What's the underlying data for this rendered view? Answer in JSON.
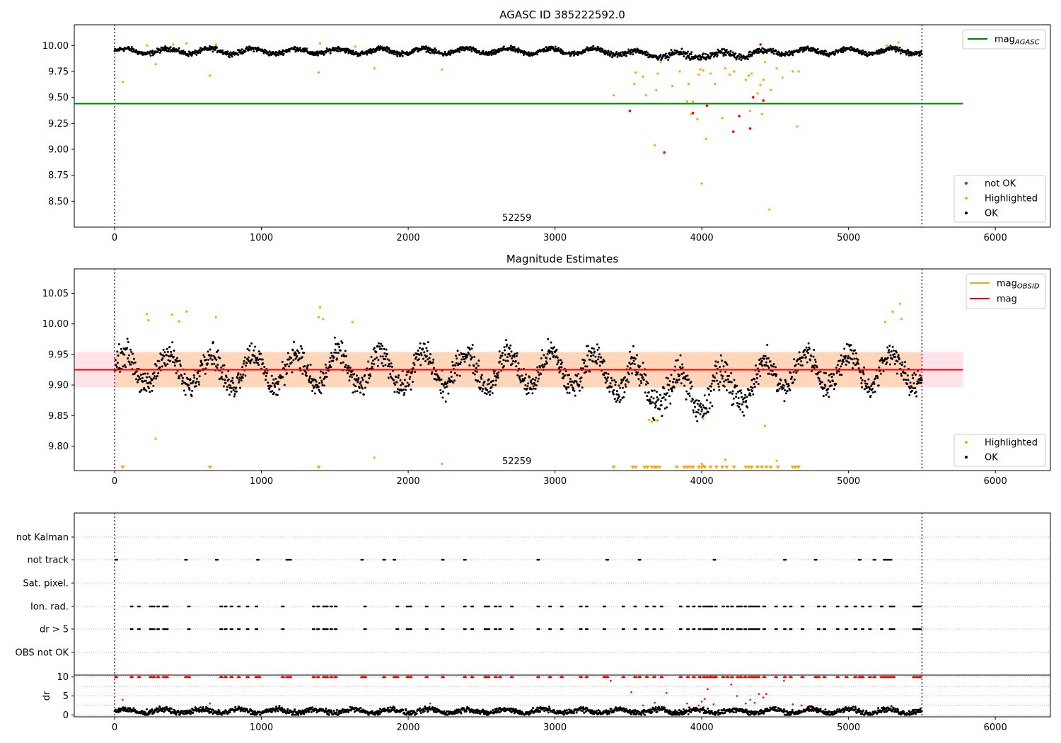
{
  "chart_data": [
    {
      "type": "scatter",
      "title": "AGASC ID 385222592.0",
      "xlim": [
        -275,
        6375
      ],
      "ylim": [
        8.25,
        10.2
      ],
      "x_ticks": [
        0,
        1000,
        2000,
        3000,
        4000,
        5000,
        6000
      ],
      "x_tick_labels": [
        "0",
        "1000",
        "2000",
        "3000",
        "4000",
        "5000",
        "6000"
      ],
      "y_ticks": [
        8.5,
        8.75,
        9.0,
        9.25,
        9.5,
        9.75,
        10.0
      ],
      "y_tick_labels": [
        "8.50",
        "8.75",
        "9.00",
        "9.25",
        "9.50",
        "9.75",
        "10.00"
      ],
      "obsid_label": "52259",
      "obsid_label_x": 2740,
      "obs_bounds": [
        0,
        5500
      ],
      "mag_agasc": 9.44,
      "mag_agasc_xrange": [
        -275,
        5780
      ],
      "ok_band": {
        "center": 9.945,
        "amplitude": 0.025,
        "noise": 0.02,
        "period": 290,
        "dip": {
          "x": [
            3300,
            4600
          ],
          "depth": 0.04
        }
      },
      "legend_top": [
        {
          "name": "mag$_{AGASC}$",
          "label": "mag",
          "sub": "AGASC",
          "color": "#008000"
        }
      ],
      "legend_bottom": [
        {
          "name": "not OK",
          "color": "#ff0000"
        },
        {
          "name": "Highlighted",
          "color": "#ffa500"
        },
        {
          "name": "OK",
          "color": "#000000"
        }
      ],
      "not_ok_points": [
        {
          "x": 3510,
          "y": 9.37
        },
        {
          "x": 3745,
          "y": 8.97
        },
        {
          "x": 3940,
          "y": 9.35
        },
        {
          "x": 4035,
          "y": 9.42
        },
        {
          "x": 4215,
          "y": 9.17
        },
        {
          "x": 4255,
          "y": 9.32
        },
        {
          "x": 4330,
          "y": 9.2
        },
        {
          "x": 4350,
          "y": 9.5
        },
        {
          "x": 4400,
          "y": 10.01
        },
        {
          "x": 4420,
          "y": 9.47
        }
      ],
      "highlighted_points": [
        {
          "x": 55,
          "y": 9.65
        },
        {
          "x": 280,
          "y": 9.82
        },
        {
          "x": 220,
          "y": 10.0
        },
        {
          "x": 400,
          "y": 10.01
        },
        {
          "x": 490,
          "y": 10.02
        },
        {
          "x": 650,
          "y": 9.71
        },
        {
          "x": 690,
          "y": 10.01
        },
        {
          "x": 1390,
          "y": 9.74
        },
        {
          "x": 1400,
          "y": 10.02
        },
        {
          "x": 1640,
          "y": 9.99
        },
        {
          "x": 1770,
          "y": 9.78
        },
        {
          "x": 2230,
          "y": 9.77
        },
        {
          "x": 3400,
          "y": 9.52
        },
        {
          "x": 3540,
          "y": 9.63
        },
        {
          "x": 3550,
          "y": 9.74
        },
        {
          "x": 3600,
          "y": 9.7
        },
        {
          "x": 3620,
          "y": 9.52
        },
        {
          "x": 3680,
          "y": 9.04
        },
        {
          "x": 3690,
          "y": 9.57
        },
        {
          "x": 3700,
          "y": 9.73
        },
        {
          "x": 3720,
          "y": 9.84
        },
        {
          "x": 3800,
          "y": 9.61
        },
        {
          "x": 3850,
          "y": 9.75
        },
        {
          "x": 3900,
          "y": 9.46
        },
        {
          "x": 3910,
          "y": 9.63
        },
        {
          "x": 3930,
          "y": 9.34
        },
        {
          "x": 3940,
          "y": 9.46
        },
        {
          "x": 3970,
          "y": 9.29
        },
        {
          "x": 3980,
          "y": 9.72
        },
        {
          "x": 3990,
          "y": 9.77
        },
        {
          "x": 4000,
          "y": 8.67
        },
        {
          "x": 4010,
          "y": 9.76
        },
        {
          "x": 4030,
          "y": 9.1
        },
        {
          "x": 4060,
          "y": 9.73
        },
        {
          "x": 4090,
          "y": 9.63
        },
        {
          "x": 4140,
          "y": 9.3
        },
        {
          "x": 4160,
          "y": 9.78
        },
        {
          "x": 4190,
          "y": 9.72
        },
        {
          "x": 4220,
          "y": 9.75
        },
        {
          "x": 4300,
          "y": 9.67
        },
        {
          "x": 4320,
          "y": 9.71
        },
        {
          "x": 4330,
          "y": 9.37
        },
        {
          "x": 4340,
          "y": 9.73
        },
        {
          "x": 4380,
          "y": 9.54
        },
        {
          "x": 4400,
          "y": 9.62
        },
        {
          "x": 4410,
          "y": 9.34
        },
        {
          "x": 4420,
          "y": 9.67
        },
        {
          "x": 4430,
          "y": 9.84
        },
        {
          "x": 4460,
          "y": 8.42
        },
        {
          "x": 4470,
          "y": 9.57
        },
        {
          "x": 4510,
          "y": 9.78
        },
        {
          "x": 4550,
          "y": 9.69
        },
        {
          "x": 4620,
          "y": 9.75
        },
        {
          "x": 4650,
          "y": 9.22
        },
        {
          "x": 4660,
          "y": 9.75
        },
        {
          "x": 5260,
          "y": 10.0
        },
        {
          "x": 5340,
          "y": 10.03
        }
      ]
    },
    {
      "type": "scatter",
      "title": "Magnitude Estimates",
      "xlim": [
        -275,
        6375
      ],
      "ylim": [
        9.76,
        10.09
      ],
      "x_ticks": [
        0,
        1000,
        2000,
        3000,
        4000,
        5000,
        6000
      ],
      "x_tick_labels": [
        "0",
        "1000",
        "2000",
        "3000",
        "4000",
        "5000",
        "6000"
      ],
      "y_ticks": [
        9.8,
        9.85,
        9.9,
        9.95,
        10.0,
        10.05
      ],
      "y_tick_labels": [
        "9.80",
        "9.85",
        "9.90",
        "9.95",
        "10.00",
        "10.05"
      ],
      "obsid_label": "52259",
      "obsid_label_x": 2740,
      "obs_bounds": [
        0,
        5500
      ],
      "mag": 9.925,
      "mag_band": [
        9.896,
        9.954
      ],
      "mag_xrange": [
        -275,
        5780
      ],
      "mag_obsid": 9.925,
      "mag_obsid_band": [
        9.896,
        9.954
      ],
      "mag_obsid_xrange": [
        0,
        5500
      ],
      "ok_band": {
        "center": 9.925,
        "amplitude": 0.028,
        "noise": 0.018,
        "period": 290,
        "dip": {
          "x": [
            3300,
            4600
          ],
          "depth": 0.035
        }
      },
      "legend_top": [
        {
          "name": "mag$_{OBSID}$",
          "label": "mag",
          "sub": "OBSID",
          "color": "#ffa500"
        },
        {
          "name": "mag",
          "label": "mag",
          "sub": "",
          "color": "#ff0000"
        }
      ],
      "legend_bottom": [
        {
          "name": "Highlighted",
          "color": "#ffa500"
        },
        {
          "name": "OK",
          "color": "#000000"
        }
      ],
      "highlighted_points": [
        {
          "x": 220,
          "y": 10.016
        },
        {
          "x": 230,
          "y": 10.006
        },
        {
          "x": 390,
          "y": 10.015
        },
        {
          "x": 440,
          "y": 10.004
        },
        {
          "x": 490,
          "y": 10.02
        },
        {
          "x": 690,
          "y": 10.011
        },
        {
          "x": 1400,
          "y": 10.027
        },
        {
          "x": 1390,
          "y": 10.011
        },
        {
          "x": 1420,
          "y": 10.008
        },
        {
          "x": 1620,
          "y": 10.003
        },
        {
          "x": 280,
          "y": 9.812
        },
        {
          "x": 1770,
          "y": 9.781
        },
        {
          "x": 2230,
          "y": 9.771
        },
        {
          "x": 3640,
          "y": 9.843
        },
        {
          "x": 3660,
          "y": 9.84
        },
        {
          "x": 3690,
          "y": 9.842
        },
        {
          "x": 3700,
          "y": 9.842
        },
        {
          "x": 4010,
          "y": 9.845
        },
        {
          "x": 4430,
          "y": 9.833
        },
        {
          "x": 4000,
          "y": 9.771
        },
        {
          "x": 4010,
          "y": 9.768
        },
        {
          "x": 4160,
          "y": 9.778
        },
        {
          "x": 4510,
          "y": 9.776
        },
        {
          "x": 5250,
          "y": 10.003
        },
        {
          "x": 5300,
          "y": 10.02
        },
        {
          "x": 5350,
          "y": 10.033
        },
        {
          "x": 5360,
          "y": 10.008
        }
      ],
      "lower_limit_markers_x": [
        55,
        650,
        1390,
        3400,
        3530,
        3550,
        3610,
        3630,
        3660,
        3680,
        3690,
        3710,
        3830,
        3880,
        3900,
        3920,
        3940,
        3980,
        4000,
        4020,
        4060,
        4100,
        4140,
        4170,
        4220,
        4300,
        4320,
        4340,
        4380,
        4410,
        4440,
        4470,
        4520,
        4620,
        4640,
        4660
      ]
    },
    {
      "type": "scatter",
      "title": "",
      "xlim": [
        -275,
        6375
      ],
      "x_ticks": [
        0,
        1000,
        2000,
        3000,
        4000,
        5000,
        6000
      ],
      "x_tick_labels": [
        "0",
        "1000",
        "2000",
        "3000",
        "4000",
        "5000",
        "6000"
      ],
      "obs_bounds": [
        0,
        5500
      ],
      "flag_rows": [
        "not Kalman",
        "not track",
        "Sat. pixel.",
        "Ion. rad.",
        "dr > 5",
        "OBS not OK"
      ],
      "flag_points": {
        "not Kalman": [],
        "not track": [
          5,
          480,
          690,
          970,
          1170,
          1190,
          1680,
          1830,
          1900,
          2230,
          2380,
          2880,
          3350,
          3570,
          4080,
          4560,
          4770,
          5070,
          5170,
          5240,
          5260,
          5280
        ],
        "Sat. pixel.": [],
        "Ion. rad.": [
          110,
          160,
          240,
          260,
          290,
          330,
          350,
          500,
          720,
          750,
          790,
          840,
          900,
          960,
          1140,
          1350,
          1380,
          1420,
          1440,
          1470,
          1500,
          1700,
          1920,
          1990,
          2010,
          2120,
          2230,
          2380,
          2430,
          2520,
          2540,
          2590,
          2620,
          2700,
          2880,
          2960,
          3040,
          3170,
          3210,
          3330,
          3460,
          3540,
          3620,
          3670,
          3720,
          3850,
          3900,
          3940,
          3980,
          4010,
          4030,
          4050,
          4060,
          4090,
          4140,
          4170,
          4200,
          4240,
          4260,
          4290,
          4320,
          4340,
          4360,
          4380,
          4420,
          4500,
          4560,
          4600,
          4680,
          4790,
          4830,
          4920,
          4980,
          5040,
          5090,
          5140,
          5220,
          5280,
          5300,
          5440,
          5460,
          5480
        ],
        "dr > 5": [
          110,
          160,
          240,
          260,
          290,
          330,
          350,
          500,
          720,
          750,
          790,
          840,
          900,
          960,
          1140,
          1350,
          1380,
          1420,
          1440,
          1470,
          1500,
          1700,
          1920,
          1990,
          2010,
          2120,
          2230,
          2380,
          2430,
          2520,
          2540,
          2590,
          2620,
          2700,
          2880,
          2960,
          3040,
          3170,
          3210,
          3330,
          3460,
          3540,
          3620,
          3670,
          3720,
          3850,
          3900,
          3940,
          3980,
          4010,
          4030,
          4050,
          4060,
          4090,
          4140,
          4170,
          4200,
          4240,
          4260,
          4290,
          4320,
          4340,
          4360,
          4380,
          4420,
          4500,
          4560,
          4600,
          4680,
          4790,
          4830,
          4920,
          4980,
          5040,
          5090,
          5140,
          5220,
          5280,
          5300,
          5440,
          5460,
          5480
        ],
        "OBS not OK": []
      }
    },
    {
      "type": "scatter",
      "title": "",
      "ylabel": "dr",
      "xlim": [
        -275,
        6375
      ],
      "ylim": [
        -0.5,
        10.5
      ],
      "x_ticks": [
        0,
        1000,
        2000,
        3000,
        4000,
        5000,
        6000
      ],
      "x_tick_labels": [
        "0",
        "1000",
        "2000",
        "3000",
        "4000",
        "5000",
        "6000"
      ],
      "y_ticks": [
        0,
        5,
        10
      ],
      "y_tick_labels": [
        "0",
        "5",
        "10"
      ],
      "obs_bounds": [
        0,
        5500
      ],
      "dr_band": {
        "center": 1.0,
        "amplitude": 0.5,
        "noise": 0.6,
        "period": 260
      },
      "dr_high_points": [
        {
          "x": 55,
          "y": 4.0
        },
        {
          "x": 650,
          "y": 3.0
        },
        {
          "x": 2150,
          "y": 3.0
        },
        {
          "x": 3380,
          "y": 9.0
        },
        {
          "x": 3520,
          "y": 6.0
        },
        {
          "x": 3600,
          "y": 2.5
        },
        {
          "x": 3680,
          "y": 3.2
        },
        {
          "x": 3760,
          "y": 5.8
        },
        {
          "x": 3900,
          "y": 3.0
        },
        {
          "x": 3980,
          "y": 2.5
        },
        {
          "x": 4000,
          "y": 3.5
        },
        {
          "x": 4020,
          "y": 4.2
        },
        {
          "x": 4040,
          "y": 6.8
        },
        {
          "x": 4080,
          "y": 2.8
        },
        {
          "x": 4200,
          "y": 8.0
        },
        {
          "x": 4240,
          "y": 5.0
        },
        {
          "x": 4300,
          "y": 3.0
        },
        {
          "x": 4330,
          "y": 4.0
        },
        {
          "x": 4360,
          "y": 3.2
        },
        {
          "x": 4390,
          "y": 5.5
        },
        {
          "x": 4420,
          "y": 4.6
        },
        {
          "x": 4440,
          "y": 5.5
        },
        {
          "x": 4560,
          "y": 9.0
        },
        {
          "x": 4620,
          "y": 2.8
        },
        {
          "x": 4680,
          "y": 2.5
        }
      ],
      "dr_clipped_x": [
        5,
        110,
        160,
        240,
        260,
        290,
        330,
        350,
        480,
        500,
        720,
        750,
        790,
        840,
        900,
        960,
        980,
        1140,
        1170,
        1190,
        1350,
        1380,
        1420,
        1440,
        1470,
        1500,
        1680,
        1700,
        1830,
        1900,
        1920,
        1990,
        2010,
        2120,
        2230,
        2380,
        2430,
        2520,
        2540,
        2590,
        2620,
        2700,
        2880,
        2960,
        3040,
        3170,
        3210,
        3330,
        3350,
        3460,
        3540,
        3570,
        3620,
        3670,
        3720,
        3850,
        3900,
        3940,
        3980,
        4010,
        4030,
        4050,
        4060,
        4080,
        4090,
        4140,
        4170,
        4200,
        4240,
        4260,
        4290,
        4320,
        4340,
        4360,
        4380,
        4420,
        4500,
        4560,
        4600,
        4680,
        4770,
        4790,
        4830,
        4920,
        4980,
        5040,
        5070,
        5090,
        5140,
        5170,
        5220,
        5240,
        5260,
        5280,
        5300,
        5440,
        5460,
        5480
      ]
    }
  ]
}
